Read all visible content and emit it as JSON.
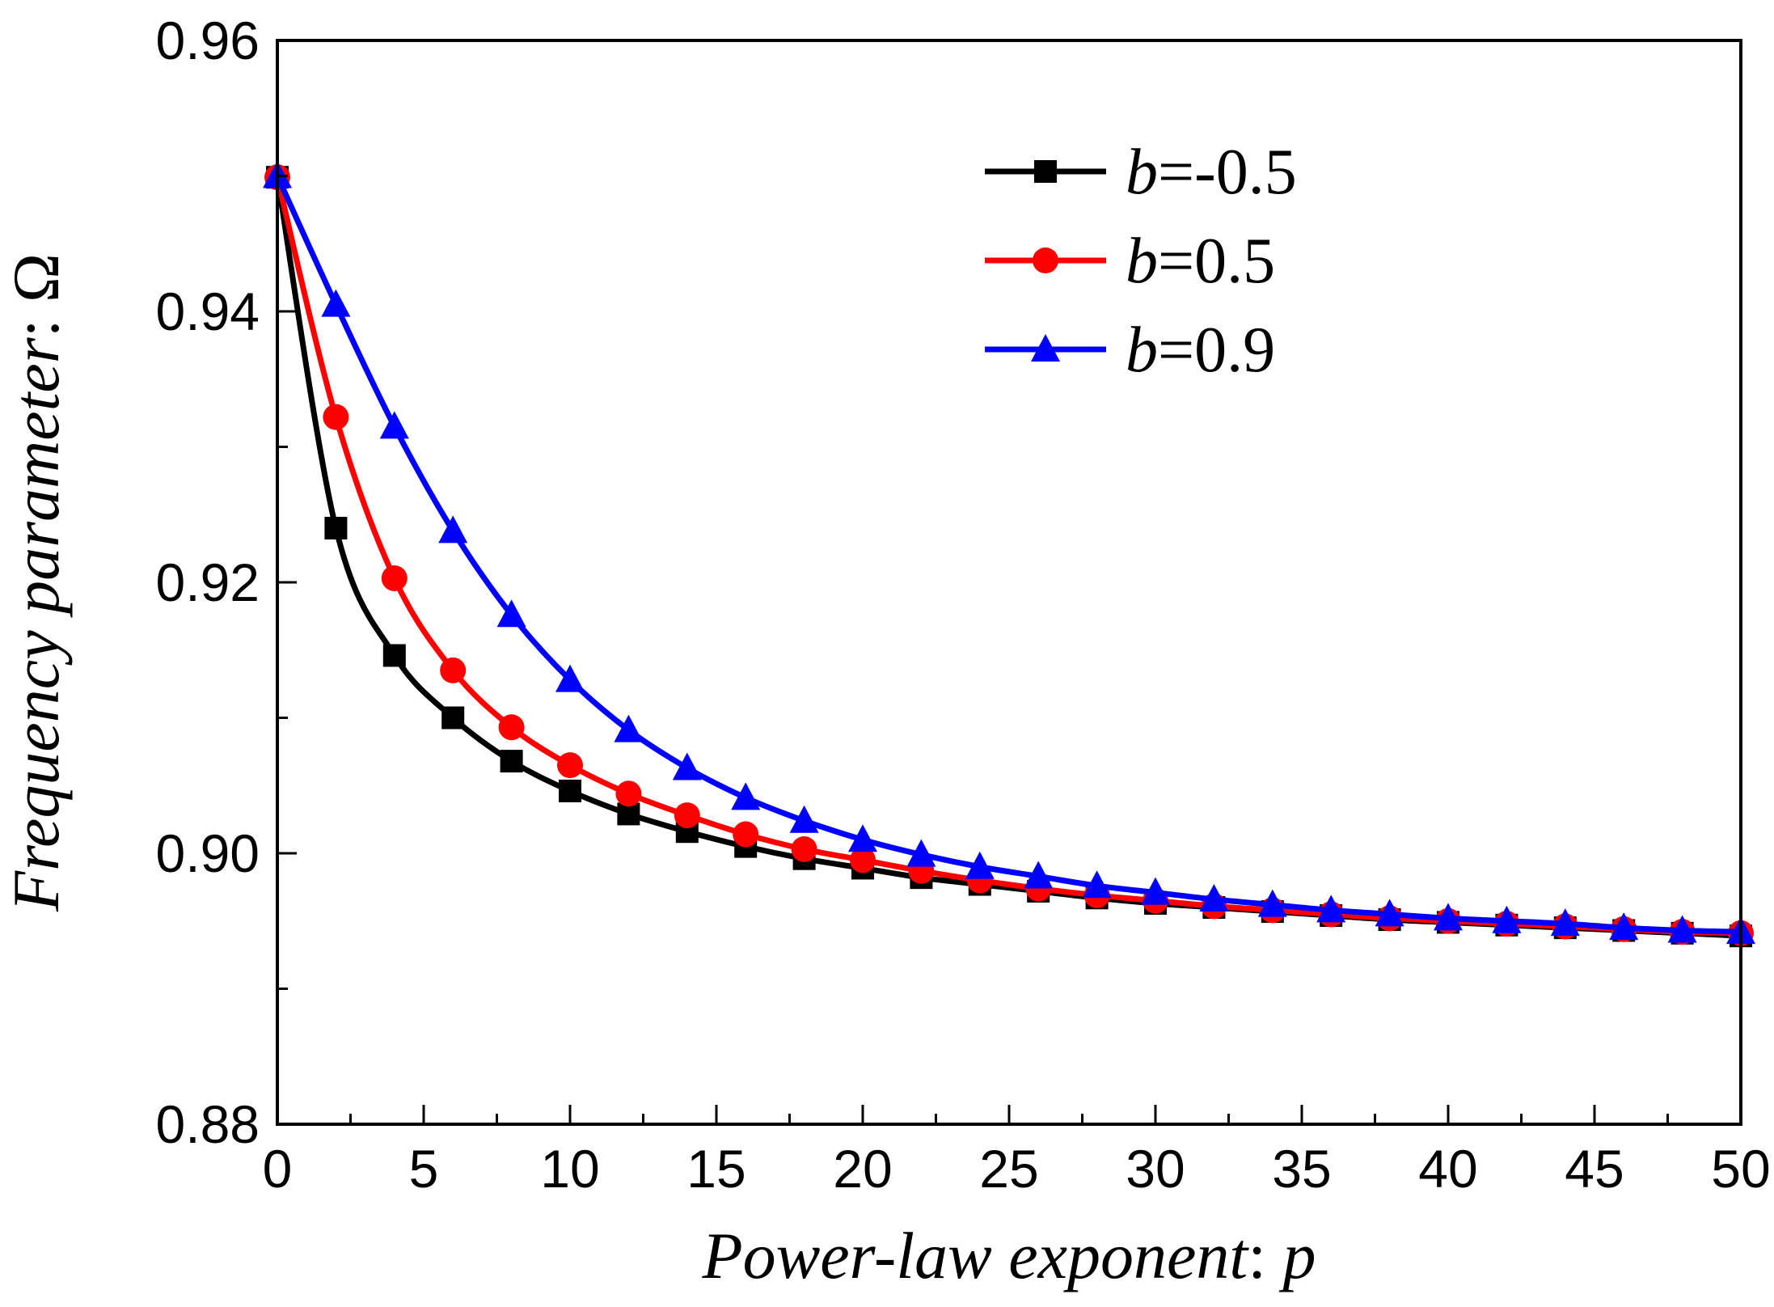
{
  "chart_data": {
    "type": "line",
    "title": "",
    "xlabel": "Power-law exponent: p",
    "xlabel_parts": {
      "text": "Power-law exponent",
      "sep": ": ",
      "var": "p"
    },
    "ylabel": "Frequency parameter: Ω",
    "ylabel_parts": {
      "text": "Frequency parameter",
      "sep": ": ",
      "var": "Ω"
    },
    "xlim": [
      0,
      50
    ],
    "ylim": [
      0.88,
      0.96
    ],
    "xticks": [
      0,
      5,
      10,
      15,
      20,
      25,
      30,
      35,
      40,
      45,
      50
    ],
    "xtick_labels": [
      "0",
      "5",
      "10",
      "15",
      "20",
      "25",
      "30",
      "35",
      "40",
      "45",
      "50"
    ],
    "yticks": [
      0.88,
      0.9,
      0.92,
      0.94,
      0.96
    ],
    "ytick_labels": [
      "0.88",
      "0.90",
      "0.92",
      "0.94",
      "0.96"
    ],
    "grid": false,
    "legend_position": "top-right",
    "x": [
      0,
      2,
      4,
      6,
      8,
      10,
      12,
      14,
      16,
      18,
      20,
      22,
      24,
      26,
      28,
      30,
      32,
      34,
      36,
      38,
      40,
      42,
      44,
      46,
      48,
      50
    ],
    "series": [
      {
        "name": "b=-0.5",
        "legend_var": "b",
        "legend_rest": "=-0.5",
        "color": "#000000",
        "marker": "square",
        "values": [
          0.9499,
          0.924,
          0.9146,
          0.91,
          0.9068,
          0.9046,
          0.9029,
          0.9016,
          0.9005,
          0.8996,
          0.8989,
          0.8982,
          0.8977,
          0.8972,
          0.8967,
          0.8963,
          0.896,
          0.8957,
          0.8954,
          0.8951,
          0.8949,
          0.8947,
          0.8945,
          0.8943,
          0.8941,
          0.8939
        ]
      },
      {
        "name": "b=0.5",
        "legend_var": "b",
        "legend_rest": "=0.5",
        "color": "#ff0000",
        "marker": "circle",
        "values": [
          0.9499,
          0.9322,
          0.9203,
          0.9135,
          0.9093,
          0.9065,
          0.9044,
          0.9028,
          0.9014,
          0.9003,
          0.8995,
          0.8987,
          0.898,
          0.8974,
          0.8969,
          0.8965,
          0.8961,
          0.8958,
          0.8955,
          0.8952,
          0.895,
          0.8948,
          0.8946,
          0.8944,
          0.8942,
          0.8941
        ]
      },
      {
        "name": "b=0.9",
        "legend_var": "b",
        "legend_rest": "=0.9",
        "color": "#0000ff",
        "marker": "triangle",
        "values": [
          0.95,
          0.9405,
          0.9315,
          0.9238,
          0.9176,
          0.9128,
          0.9091,
          0.9063,
          0.9041,
          0.9024,
          0.901,
          0.8999,
          0.899,
          0.8983,
          0.8976,
          0.8971,
          0.8966,
          0.8962,
          0.8958,
          0.8955,
          0.8952,
          0.895,
          0.8948,
          0.8945,
          0.8943,
          0.8942
        ]
      }
    ]
  }
}
